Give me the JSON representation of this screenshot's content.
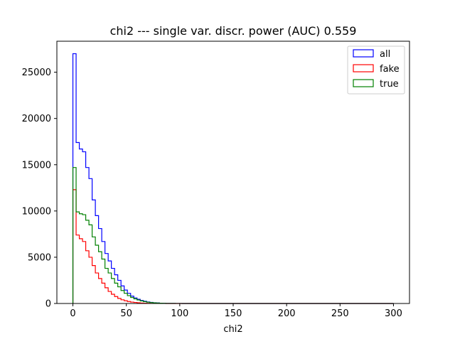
{
  "chart_data": {
    "type": "histogram-step",
    "title": "chi2 --- single var. discr. power (AUC) 0.559",
    "xlabel": "chi2",
    "ylabel": "",
    "xlim": [
      -15,
      315
    ],
    "ylim": [
      0,
      28350
    ],
    "xticks": [
      0,
      50,
      100,
      150,
      200,
      250,
      300
    ],
    "yticks": [
      0,
      5000,
      10000,
      15000,
      20000,
      25000
    ],
    "legend_position": "upper right",
    "grid": false,
    "bin_edges": [
      0,
      3,
      6,
      9,
      12,
      15,
      18,
      21,
      24,
      27,
      30,
      33,
      36,
      39,
      42,
      45,
      48,
      51,
      54,
      57,
      60,
      63,
      66,
      69,
      72,
      75,
      78,
      81,
      84,
      87,
      90,
      93,
      96,
      99,
      102,
      105,
      108,
      111,
      114,
      117,
      120,
      123,
      126,
      129,
      132,
      135,
      138,
      141,
      144,
      147,
      150,
      153,
      156,
      159,
      162,
      165,
      168,
      171,
      174,
      177,
      180,
      183,
      186,
      189,
      192,
      195,
      198,
      201,
      204,
      207,
      210,
      213,
      216,
      219,
      222,
      225,
      228,
      231,
      234,
      237,
      240,
      243,
      246,
      249,
      252,
      255,
      258,
      261,
      264,
      267,
      270,
      273,
      276,
      279,
      282,
      285,
      288,
      291,
      294,
      297,
      300
    ],
    "series": [
      {
        "name": "all",
        "color": "#0000ff",
        "values": [
          27000,
          17400,
          16700,
          16400,
          14700,
          13500,
          11200,
          9500,
          8100,
          6700,
          5400,
          4600,
          3800,
          3100,
          2500,
          1900,
          1450,
          1100,
          800,
          600,
          450,
          330,
          240,
          170,
          120,
          80,
          55,
          35,
          25,
          15,
          10,
          8,
          5,
          3,
          2,
          2,
          1,
          1,
          1,
          1,
          1,
          0,
          0,
          0,
          0,
          0,
          0,
          0,
          0,
          0,
          0,
          0,
          0,
          0,
          0,
          0,
          0,
          0,
          0,
          0,
          0,
          0,
          0,
          0,
          0,
          0,
          0,
          0,
          0,
          0,
          0,
          0,
          0,
          0,
          0,
          0,
          0,
          0,
          0,
          0,
          0,
          0,
          0,
          0,
          0,
          0,
          0,
          0,
          0,
          0,
          0,
          0,
          0,
          0,
          0,
          0,
          0,
          0,
          0,
          0
        ]
      },
      {
        "name": "fake",
        "color": "#ff0000",
        "values": [
          12300,
          7400,
          7000,
          6700,
          5700,
          5000,
          4100,
          3300,
          2700,
          2200,
          1700,
          1300,
          1000,
          750,
          550,
          400,
          300,
          210,
          150,
          110,
          75,
          50,
          35,
          25,
          15,
          10,
          8,
          5,
          3,
          2,
          1,
          1,
          1,
          1,
          0,
          0,
          0,
          0,
          0,
          0,
          0,
          0,
          0,
          0,
          0,
          0,
          0,
          0,
          0,
          0,
          0,
          0,
          0,
          0,
          0,
          0,
          0,
          0,
          0,
          0,
          0,
          0,
          0,
          0,
          0,
          0,
          0,
          0,
          0,
          0,
          0,
          0,
          0,
          0,
          0,
          0,
          0,
          0,
          0,
          0,
          0,
          0,
          0,
          0,
          0,
          0,
          0,
          0,
          0,
          0,
          0,
          0,
          0,
          0,
          0,
          0,
          0,
          0,
          0,
          0
        ]
      },
      {
        "name": "true",
        "color": "#008000",
        "values": [
          14700,
          9900,
          9700,
          9600,
          9000,
          8500,
          7200,
          6300,
          5600,
          4800,
          3800,
          3300,
          2700,
          2200,
          1800,
          1400,
          1100,
          850,
          650,
          500,
          380,
          280,
          200,
          140,
          100,
          70,
          50,
          30,
          20,
          15,
          10,
          7,
          5,
          3,
          2,
          2,
          1,
          1,
          1,
          1,
          0,
          0,
          0,
          0,
          0,
          0,
          0,
          0,
          0,
          0,
          0,
          0,
          0,
          0,
          0,
          0,
          0,
          0,
          0,
          0,
          0,
          0,
          0,
          0,
          0,
          0,
          0,
          0,
          0,
          0,
          0,
          0,
          0,
          0,
          0,
          0,
          0,
          0,
          0,
          0,
          0,
          0,
          0,
          0,
          0,
          0,
          0,
          0,
          0,
          0,
          0,
          0,
          0,
          0,
          0,
          0,
          0,
          0,
          0,
          0
        ]
      }
    ]
  }
}
